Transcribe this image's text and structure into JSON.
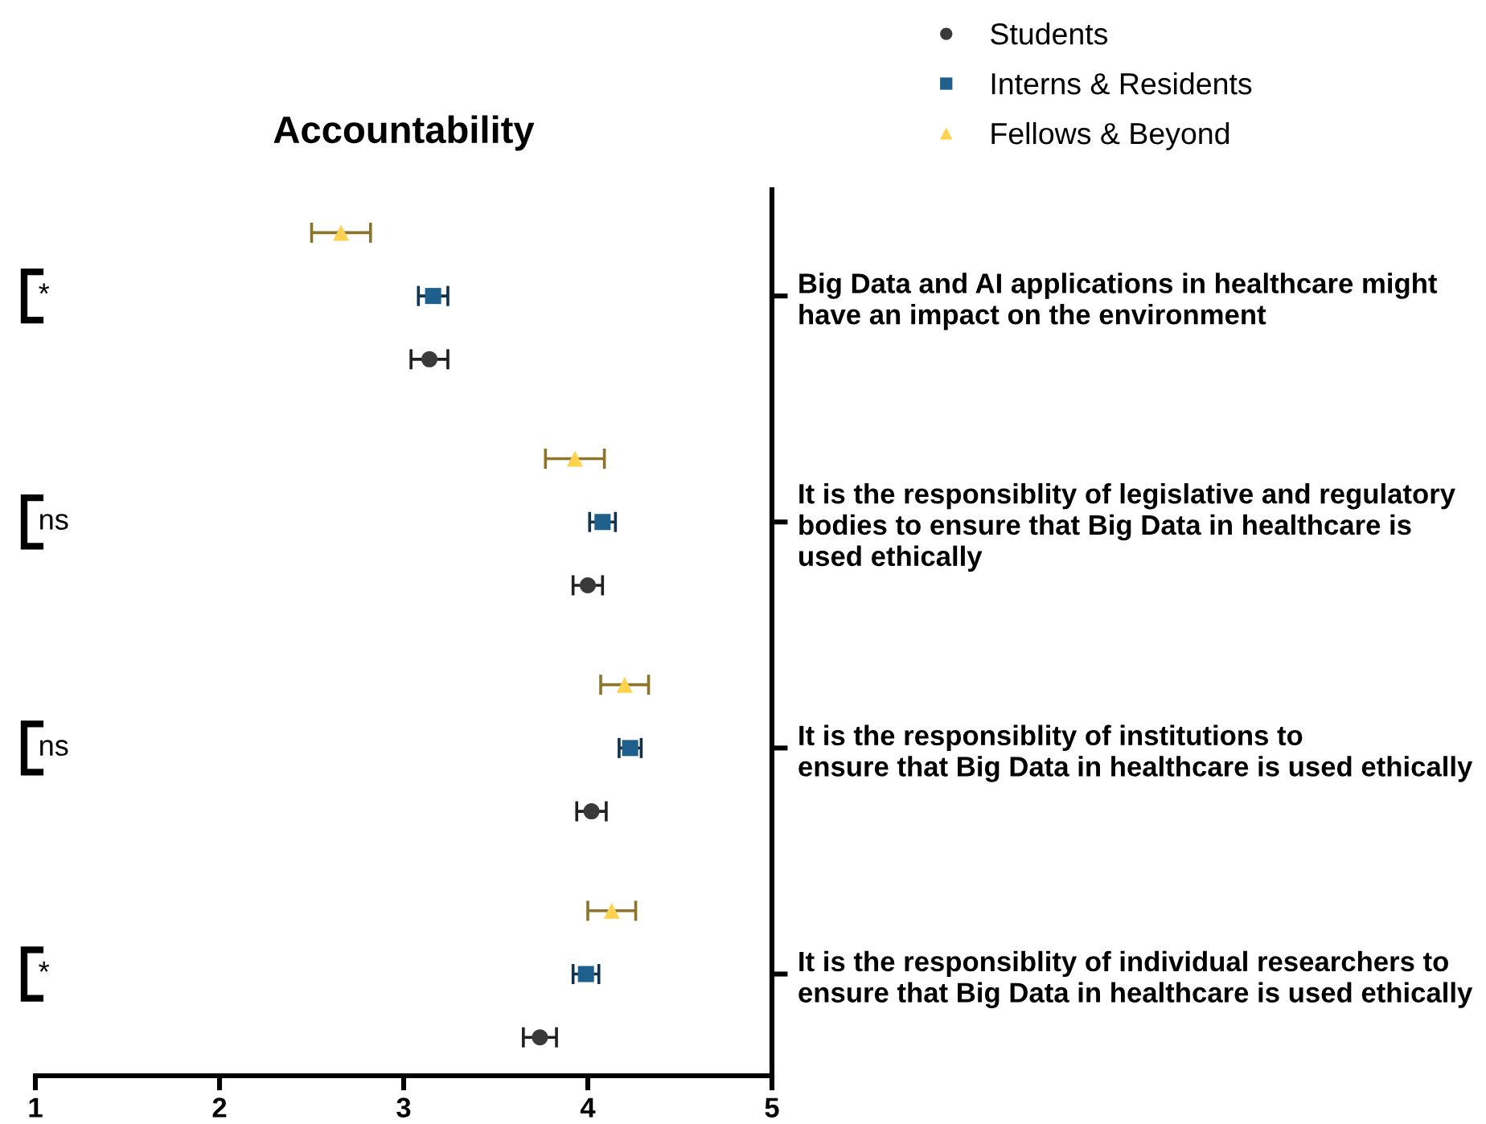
{
  "chart_data": {
    "type": "scatter",
    "orientation": "horizontal",
    "title": "Accountability",
    "categories": [
      "Big Data and AI applications in healthcare might\nhave an impact on the environment",
      "It is the responsiblity of legislative and regulatory\nbodies to ensure that Big Data in healthcare is\nused ethically",
      "It is the responsiblity of institutions to\nensure that Big Data in healthcare is used ethically",
      "It is the responsiblity of individual researchers to\nensure that Big Data in healthcare is used ethically"
    ],
    "series": [
      {
        "name": "Students",
        "color": "#3a3a3a",
        "marker": "circle",
        "values": [
          3.14,
          4.0,
          4.02,
          3.74
        ],
        "errors": [
          0.1,
          0.08,
          0.08,
          0.09
        ]
      },
      {
        "name": "Interns & Residents",
        "color": "#1f5f8b",
        "marker": "square",
        "values": [
          3.16,
          4.08,
          4.23,
          3.99
        ],
        "errors": [
          0.08,
          0.07,
          0.06,
          0.07
        ]
      },
      {
        "name": "Fellows & Beyond",
        "color": "#ffd24f",
        "marker": "triangle",
        "values": [
          2.66,
          3.93,
          4.2,
          4.13
        ],
        "errors": [
          0.16,
          0.16,
          0.13,
          0.13
        ]
      }
    ],
    "xlim": [
      1,
      5
    ],
    "xticks": [
      1,
      2,
      3,
      4,
      5
    ],
    "legend": "top right",
    "annotations": [
      "*",
      "ns",
      "ns",
      "*"
    ]
  }
}
